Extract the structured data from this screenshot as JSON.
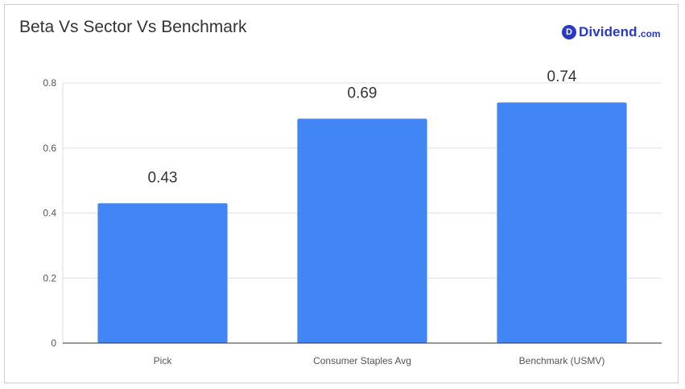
{
  "brand": {
    "badge": "D",
    "name": "Dividend",
    "tld": ".com",
    "color": "#2a39c4"
  },
  "chart_data": {
    "type": "bar",
    "title": "Beta Vs Sector Vs Benchmark",
    "xlabel": "",
    "ylabel": "",
    "categories": [
      "Pick",
      "Consumer Staples Avg",
      "Benchmark (USMV)"
    ],
    "values": [
      0.43,
      0.69,
      0.74
    ],
    "data_labels": [
      "0.43",
      "0.69",
      "0.74"
    ],
    "ylim": [
      0,
      0.8
    ],
    "yticks": [
      0,
      0.2,
      0.4,
      0.6,
      0.8
    ],
    "ytick_labels": [
      "0",
      "0.2",
      "0.4",
      "0.6",
      "0.8"
    ],
    "bar_color": "#4285f4",
    "grid": true,
    "legend": "none"
  }
}
